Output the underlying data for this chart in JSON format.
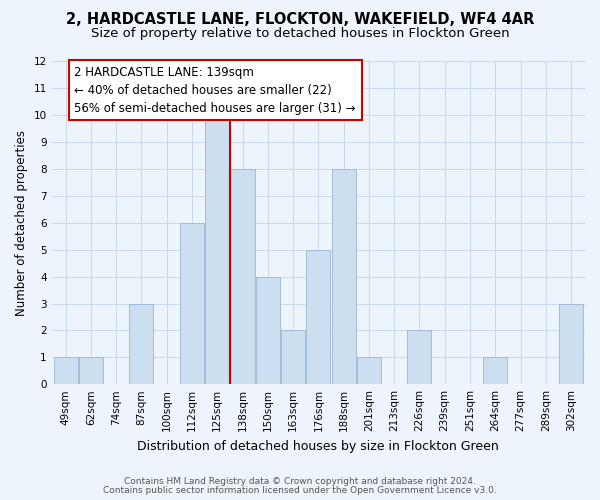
{
  "title": "2, HARDCASTLE LANE, FLOCKTON, WAKEFIELD, WF4 4AR",
  "subtitle": "Size of property relative to detached houses in Flockton Green",
  "xlabel": "Distribution of detached houses by size in Flockton Green",
  "ylabel": "Number of detached properties",
  "bin_labels": [
    "49sqm",
    "62sqm",
    "74sqm",
    "87sqm",
    "100sqm",
    "112sqm",
    "125sqm",
    "138sqm",
    "150sqm",
    "163sqm",
    "176sqm",
    "188sqm",
    "201sqm",
    "213sqm",
    "226sqm",
    "239sqm",
    "251sqm",
    "264sqm",
    "277sqm",
    "289sqm",
    "302sqm"
  ],
  "bar_heights": [
    1,
    1,
    0,
    3,
    0,
    6,
    10,
    8,
    4,
    2,
    5,
    8,
    1,
    0,
    2,
    0,
    0,
    1,
    0,
    0,
    3
  ],
  "bar_color": "#ccdff0",
  "bar_edge_color": "#a0bcd8",
  "vline_color": "#cc0000",
  "annotation_text": "2 HARDCASTLE LANE: 139sqm\n← 40% of detached houses are smaller (22)\n56% of semi-detached houses are larger (31) →",
  "annotation_box_color": "#ffffff",
  "annotation_box_edge": "#cc0000",
  "ylim": [
    0,
    12
  ],
  "yticks": [
    0,
    1,
    2,
    3,
    4,
    5,
    6,
    7,
    8,
    9,
    10,
    11,
    12
  ],
  "footer_line1": "Contains HM Land Registry data © Crown copyright and database right 2024.",
  "footer_line2": "Contains public sector information licensed under the Open Government Licence v3.0.",
  "bg_color": "#eef4fc",
  "grid_color": "#c8d8ea",
  "title_fontsize": 10.5,
  "subtitle_fontsize": 9.5,
  "tick_fontsize": 7.5,
  "ylabel_fontsize": 8.5,
  "xlabel_fontsize": 9,
  "annotation_fontsize": 8.5,
  "footer_fontsize": 6.5
}
